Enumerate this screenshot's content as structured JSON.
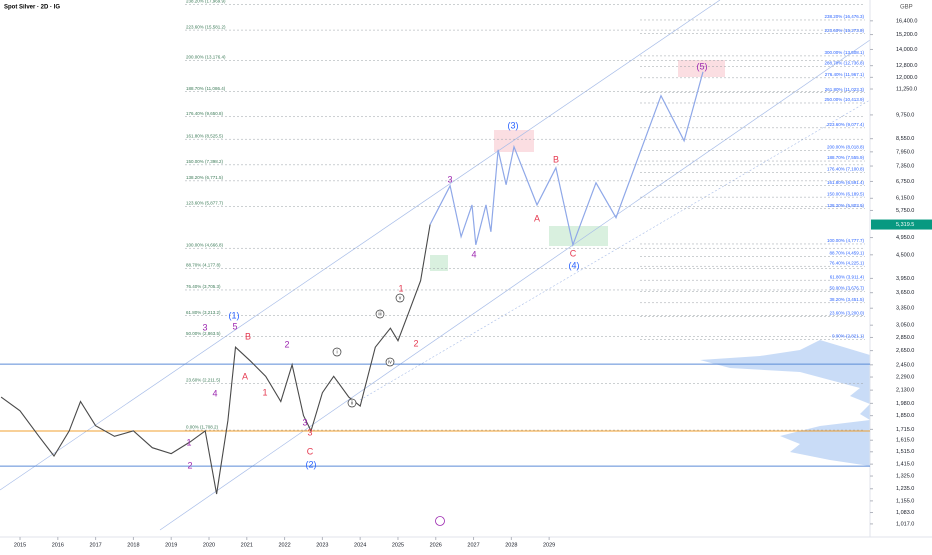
{
  "chart_data": {
    "type": "line",
    "title": "Spot Silver · 2D · IG",
    "currency": "GBP",
    "log_scale": true,
    "xlim": [
      2014.47,
      2037.49
    ],
    "ylim": [
      946,
      18400
    ],
    "xticks": [
      2015,
      2016,
      2017,
      2018,
      2019,
      2020,
      2021,
      2022,
      2023,
      2024,
      2025,
      2026,
      2027,
      2028,
      2029
    ],
    "yticks": [
      {
        "value": 16400,
        "label": "16,400.0"
      },
      {
        "value": 15200,
        "label": "15,200.0"
      },
      {
        "value": 14000,
        "label": "14,000.0"
      },
      {
        "value": 12800,
        "label": "12,800.0"
      },
      {
        "value": 12000,
        "label": "12,000.0"
      },
      {
        "value": 11250,
        "label": "11,250.0"
      },
      {
        "value": 9750,
        "label": "9,750.0"
      },
      {
        "value": 8550,
        "label": "8,550.0"
      },
      {
        "value": 7950,
        "label": "7,950.0"
      },
      {
        "value": 7350,
        "label": "7,350.0"
      },
      {
        "value": 6750,
        "label": "6,750.0"
      },
      {
        "value": 6150,
        "label": "6,150.0"
      },
      {
        "value": 5750,
        "label": "5,750.0"
      },
      {
        "value": 4950,
        "label": "4,950.0"
      },
      {
        "value": 4500,
        "label": "4,500.0"
      },
      {
        "value": 3950,
        "label": "3,950.0"
      },
      {
        "value": 3650,
        "label": "3,650.0"
      },
      {
        "value": 3350,
        "label": "3,350.0"
      },
      {
        "value": 3050,
        "label": "3,050.0"
      },
      {
        "value": 2850,
        "label": "2,850.0"
      },
      {
        "value": 2650,
        "label": "2,650.0"
      },
      {
        "value": 2450,
        "label": "2,450.0"
      },
      {
        "value": 2290,
        "label": "2,290.0"
      },
      {
        "value": 2130,
        "label": "2,130.0"
      },
      {
        "value": 1980,
        "label": "1,980.0"
      },
      {
        "value": 1850,
        "label": "1,850.0"
      },
      {
        "value": 1715,
        "label": "1,715.0"
      },
      {
        "value": 1615,
        "label": "1,615.0"
      },
      {
        "value": 1515,
        "label": "1,515.0"
      },
      {
        "value": 1415,
        "label": "1,415.0"
      },
      {
        "value": 1325,
        "label": "1,325.0"
      },
      {
        "value": 1235,
        "label": "1,235.0"
      },
      {
        "value": 1155,
        "label": "1,155.0"
      },
      {
        "value": 1083,
        "label": "1,083.0"
      },
      {
        "value": 1017,
        "label": "1,017.0"
      }
    ],
    "last_price": {
      "value": 5319.5,
      "label": "5,319.5",
      "color": "#089981"
    },
    "series": [
      {
        "color": "#4a4a4a",
        "x": [
          2014.5,
          2015.0,
          2015.5,
          2015.9,
          2016.3,
          2016.6,
          2017.0,
          2017.5,
          2018.0,
          2018.5,
          2019.0,
          2019.5,
          2019.9,
          2020.2,
          2020.5,
          2020.7,
          2021.1,
          2021.5,
          2021.9,
          2022.2,
          2022.5,
          2022.7,
          2023.0,
          2023.3,
          2023.7,
          2024.0,
          2024.4,
          2024.8,
          2025.0,
          2025.3,
          2025.6,
          2025.85
        ],
        "values": [
          2050,
          1900,
          1650,
          1480,
          1700,
          2000,
          1750,
          1650,
          1700,
          1550,
          1500,
          1600,
          1700,
          1200,
          1800,
          2700,
          2500,
          2300,
          2000,
          2450,
          1850,
          1700,
          2100,
          2300,
          2050,
          1950,
          2700,
          3000,
          2800,
          3300,
          3900,
          5319.5
        ]
      },
      {
        "color": "#8fa8e8",
        "x": [
          2025.85,
          2026.38,
          2026.67,
          2026.96,
          2027.06,
          2027.33,
          2027.46,
          2027.65,
          2027.86,
          2028.07,
          2028.68,
          2029.18,
          2029.63,
          2030.24,
          2030.77,
          2031.96,
          2032.57,
          2033.07
        ],
        "values": [
          5319.5,
          6590,
          4975,
          5930,
          4755,
          5930,
          5110,
          8040,
          6625,
          8175,
          5930,
          7280,
          4755,
          6700,
          5525,
          10840,
          8450,
          12370
        ]
      }
    ],
    "hlines": [
      {
        "value": 2460,
        "color": "#5b8bd6"
      },
      {
        "value": 1700,
        "color": "#f0a030"
      },
      {
        "value": 1400,
        "color": "#5b8bd6"
      }
    ],
    "fib_left": [
      {
        "value": 17969.9,
        "label": "238.20% (17,969.9)"
      },
      {
        "value": 15581.2,
        "label": "223.60% (15,581.2)"
      },
      {
        "value": 13176.4,
        "label": "200.00% (13,176.4)"
      },
      {
        "value": 11086.4,
        "label": "188.70% (11,086.4)"
      },
      {
        "value": 9650.8,
        "label": "176.40% (9,650.8)"
      },
      {
        "value": 8525.5,
        "label": "161.80% (8,525.5)"
      },
      {
        "value": 7398.2,
        "label": "150.00% (7,398.2)"
      },
      {
        "value": 6771.5,
        "label": "138.20% (6,771.5)"
      },
      {
        "value": 5877.7,
        "label": "123.60% (5,877.7)"
      },
      {
        "value": 4666.8,
        "label": "100.00% (4,666.8)"
      },
      {
        "value": 4177.8,
        "label": "88.70% (4,177.8)"
      },
      {
        "value": 3705.3,
        "label": "76.40% (3,705.3)"
      },
      {
        "value": 3213.2,
        "label": "61.80% (3,213.2)"
      },
      {
        "value": 2863.5,
        "label": "50.00% (2,863.5)"
      },
      {
        "value": 2211.5,
        "label": "23.60% (2,211.5)"
      },
      {
        "value": 1708.2,
        "label": "0.00% (1,708.2)"
      }
    ],
    "fib_right": [
      {
        "value": 16476.3,
        "label": "238.20% (16,476.3)"
      },
      {
        "value": 15273.8,
        "label": "223.60% (15,273.8)"
      },
      {
        "value": 13508.1,
        "label": "300.00% (13,508.1)"
      },
      {
        "value": 12736.8,
        "label": "288.70% (12,736.8)"
      },
      {
        "value": 11967.1,
        "label": "276.40% (11,967.1)"
      },
      {
        "value": 11023.3,
        "label": "261.80% (11,023.3)"
      },
      {
        "value": 10413.9,
        "label": "250.00% (10,413.9)"
      },
      {
        "value": 9077.4,
        "label": "223.60% (9,077.4)"
      },
      {
        "value": 8018.8,
        "label": "200.00% (8,018.8)"
      },
      {
        "value": 7555.9,
        "label": "188.70% (7,555.9)"
      },
      {
        "value": 7100.8,
        "label": "176.40% (7,100.8)"
      },
      {
        "value": 6591.4,
        "label": "161.80% (6,591.4)"
      },
      {
        "value": 6189.5,
        "label": "150.00% (6,189.5)"
      },
      {
        "value": 5803.9,
        "label": "138.20% (5,803.9)"
      },
      {
        "value": 4777.7,
        "label": "100.00% (4,777.7)"
      },
      {
        "value": 4459.1,
        "label": "88.70% (4,459.1)"
      },
      {
        "value": 4225.1,
        "label": "76.40% (4,225.1)"
      },
      {
        "value": 3911.4,
        "label": "61.80% (3,911.4)"
      },
      {
        "value": 3676.7,
        "label": "50.00% (3,676.7)"
      },
      {
        "value": 3451.5,
        "label": "38.20% (3,451.5)"
      },
      {
        "value": 3200.0,
        "label": "23.60% (3,200.0)"
      },
      {
        "value": 2821.1,
        "label": "0.00% (2,821.1)"
      }
    ],
    "annotations": [
      {
        "text": "3",
        "color": "#9c27b0"
      },
      {
        "text": "5",
        "color": "#9c27b0"
      },
      {
        "text": "(1)",
        "color": "#2962ff"
      },
      {
        "text": "B",
        "color": "#e53950"
      },
      {
        "text": "A",
        "color": "#e53950"
      },
      {
        "text": "4",
        "color": "#9c27b0"
      },
      {
        "text": "1",
        "color": "#e53950"
      },
      {
        "text": "2",
        "color": "#9c27b0"
      },
      {
        "text": "3",
        "color": "#9c27b0"
      },
      {
        "text": "3",
        "color": "#e53950"
      },
      {
        "text": "C",
        "color": "#e53950"
      },
      {
        "text": "(2)",
        "color": "#2962ff"
      },
      {
        "text": "1",
        "color": "#9c27b0"
      },
      {
        "text": "2",
        "color": "#9c27b0"
      },
      {
        "text": "i",
        "color": "#333333"
      },
      {
        "text": "ii",
        "color": "#333333"
      },
      {
        "text": "iii",
        "color": "#333333"
      },
      {
        "text": "iv",
        "color": "#333333"
      },
      {
        "text": "v",
        "color": "#333333"
      },
      {
        "text": "1",
        "color": "#e53950"
      },
      {
        "text": "2",
        "color": "#e53950"
      },
      {
        "text": "3",
        "color": "#9c27b0"
      },
      {
        "text": "4",
        "color": "#9c27b0"
      },
      {
        "text": "(3)",
        "color": "#2962ff"
      },
      {
        "text": "A",
        "color": "#e53950"
      },
      {
        "text": "B",
        "color": "#e53950"
      },
      {
        "text": "C",
        "color": "#e53950"
      },
      {
        "text": "(4)",
        "color": "#2962ff"
      },
      {
        "text": "(5)",
        "color": "#9c27b0"
      }
    ]
  }
}
